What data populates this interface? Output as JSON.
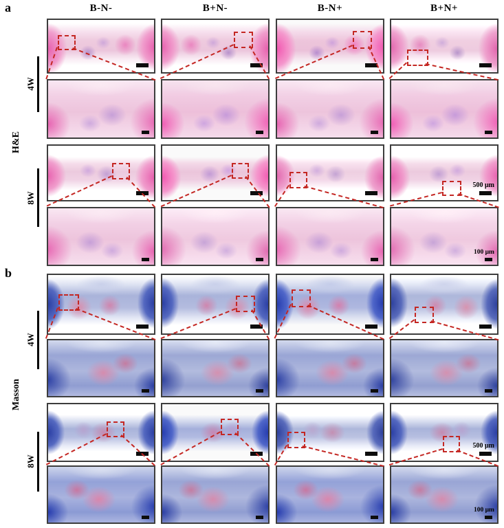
{
  "columns": [
    "B-N-",
    "B+N-",
    "B-N+",
    "B+N+"
  ],
  "panels": [
    {
      "label": "a",
      "stain": "H&E",
      "stain_class": "he",
      "groups": [
        {
          "time": "4W",
          "rois": [
            [
              10,
              30,
              14,
              22
            ],
            [
              67,
              24,
              15,
              25
            ],
            [
              71,
              23,
              15,
              27
            ],
            [
              16,
              56,
              17,
              25
            ]
          ]
        },
        {
          "time": "8W",
          "rois": [
            [
              60,
              33,
              14,
              24
            ],
            [
              65,
              33,
              13,
              22
            ],
            [
              13,
              48,
              14,
              24
            ],
            [
              48,
              64,
              15,
              22
            ]
          ],
          "scale_overview": "500 μm",
          "scale_detail": "100 μm"
        }
      ]
    },
    {
      "label": "b",
      "stain": "Masson",
      "stain_class": "ms",
      "groups": [
        {
          "time": "4W",
          "rois": [
            [
              11,
              34,
              16,
              22
            ],
            [
              69,
              36,
              15,
              22
            ],
            [
              15,
              26,
              15,
              25
            ],
            [
              23,
              54,
              15,
              22
            ]
          ]
        },
        {
          "time": "8W",
          "rois": [
            [
              55,
              31,
              14,
              23
            ],
            [
              55,
              27,
              14,
              23
            ],
            [
              11,
              49,
              14,
              23
            ],
            [
              49,
              56,
              13,
              23
            ]
          ],
          "scale_overview": "500 μm",
          "scale_detail": "100 μm"
        }
      ]
    }
  ],
  "colors": {
    "annotation_red": "#c42723",
    "he_pink": "#e760ae",
    "masson_blue": "#2b3fa4",
    "scale_bar_black": "#0d0d0d"
  }
}
